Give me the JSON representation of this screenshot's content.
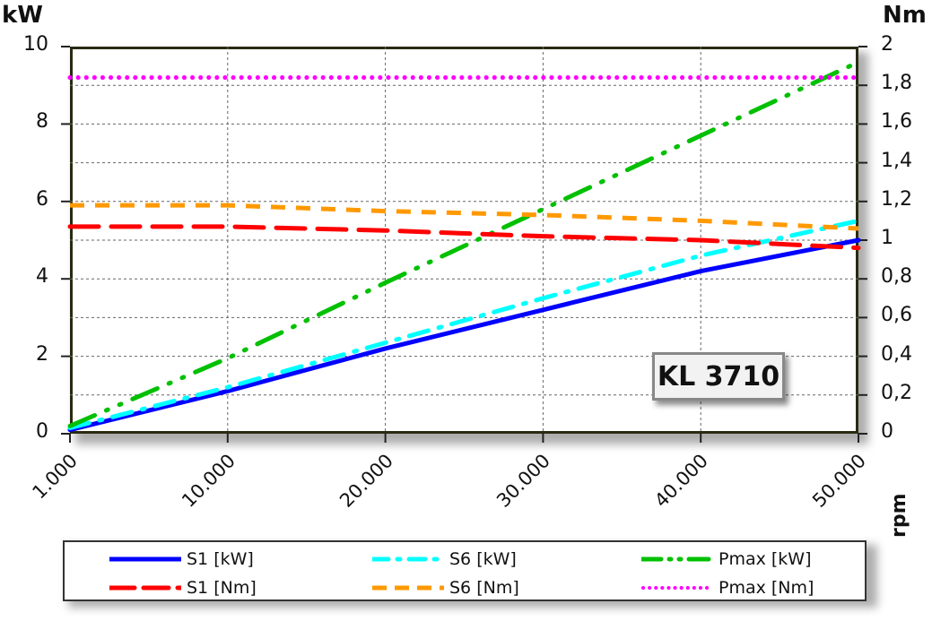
{
  "chart_data": {
    "type": "line",
    "title": "KL 3710",
    "xlabel": "rpm",
    "ylabel_left": "kW",
    "ylabel_right": "Nm",
    "categories": [
      "1.000",
      "10.000",
      "20.000",
      "30.000",
      "40.000",
      "50.000"
    ],
    "x": [
      1000,
      10000,
      20000,
      30000,
      40000,
      50000
    ],
    "ylim_left": [
      0,
      10
    ],
    "ylim_right": [
      0,
      2
    ],
    "yticks_left": [
      "0",
      "2",
      "4",
      "6",
      "8",
      "10"
    ],
    "yticks_right": [
      "0",
      "0,2",
      "0,4",
      "0,6",
      "0,8",
      "1",
      "1,2",
      "1,4",
      "1,6",
      "1,8",
      "2"
    ],
    "grid": true,
    "legend_position": "bottom",
    "series": [
      {
        "name": "S1 [kW]",
        "axis": "left",
        "color": "#0000ff",
        "style": "solid",
        "values": [
          0.1,
          1.1,
          2.2,
          3.2,
          4.2,
          5.0
        ]
      },
      {
        "name": "S6 [kW]",
        "axis": "left",
        "color": "#00ffff",
        "style": "dash-dot",
        "values": [
          0.15,
          1.2,
          2.35,
          3.5,
          4.6,
          5.5
        ]
      },
      {
        "name": "Pmax [kW]",
        "axis": "left",
        "color": "#00c000",
        "style": "dash-dot-dot",
        "values": [
          0.2,
          1.95,
          3.9,
          5.8,
          7.7,
          9.6
        ]
      },
      {
        "name": "S1 [Nm]",
        "axis": "right",
        "color": "#ff0000",
        "style": "long-dash",
        "values": [
          1.07,
          1.07,
          1.05,
          1.02,
          1.0,
          0.96
        ]
      },
      {
        "name": "S6 [Nm]",
        "axis": "right",
        "color": "#ff9900",
        "style": "dash",
        "values": [
          1.18,
          1.18,
          1.15,
          1.13,
          1.1,
          1.06
        ]
      },
      {
        "name": "Pmax [Nm]",
        "axis": "right",
        "color": "#ff00ff",
        "style": "dotted",
        "values": [
          1.84,
          1.84,
          1.84,
          1.84,
          1.84,
          1.84
        ]
      }
    ]
  },
  "labels": {
    "unit_left": "kW",
    "unit_right": "Nm",
    "unit_x": "rpm",
    "badge": "KL 3710"
  },
  "legend": [
    {
      "label": "S1 [kW]"
    },
    {
      "label": "S6 [kW]"
    },
    {
      "label": "Pmax [kW]"
    },
    {
      "label": "S1 [Nm]"
    },
    {
      "label": "S6 [Nm]"
    },
    {
      "label": "Pmax [Nm]"
    }
  ]
}
